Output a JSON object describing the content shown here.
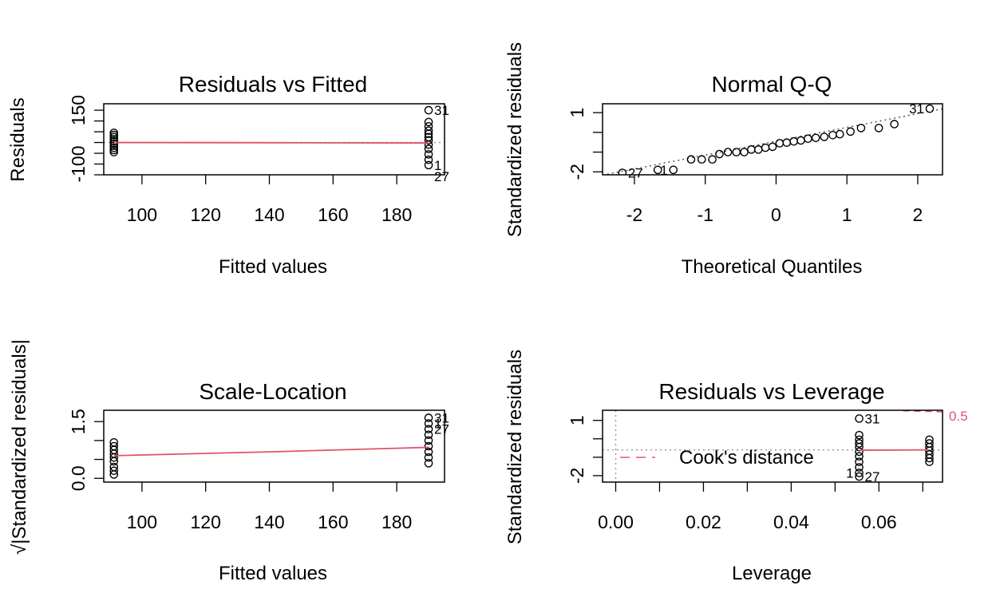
{
  "colors": {
    "smoother": "#DF536B",
    "points": "#000000",
    "refline": "#999999",
    "frame": "#000000"
  },
  "chart_data": [
    {
      "type": "scatter",
      "title": "Residuals vs Fitted",
      "xlabel": "Fitted values",
      "ylabel": "Residuals",
      "xlim": [
        88,
        195
      ],
      "ylim": [
        -150,
        180
      ],
      "xticks": [
        100,
        120,
        140,
        160,
        180
      ],
      "yticks": [
        -100,
        150
      ],
      "minor_yticks": [
        -150,
        -100,
        -50,
        0,
        50,
        100,
        150
      ],
      "points": [
        {
          "x": 91.2,
          "y": -45
        },
        {
          "x": 91.2,
          "y": -35
        },
        {
          "x": 91.2,
          "y": -25
        },
        {
          "x": 91.2,
          "y": -15
        },
        {
          "x": 91.2,
          "y": -5
        },
        {
          "x": 91.2,
          "y": 5
        },
        {
          "x": 91.2,
          "y": 15
        },
        {
          "x": 91.2,
          "y": 25
        },
        {
          "x": 91.2,
          "y": 35
        },
        {
          "x": 91.2,
          "y": 45
        },
        {
          "x": 190,
          "y": 150
        },
        {
          "x": 190,
          "y": 95
        },
        {
          "x": 190,
          "y": 75
        },
        {
          "x": 190,
          "y": 55
        },
        {
          "x": 190,
          "y": 40
        },
        {
          "x": 190,
          "y": 25
        },
        {
          "x": 190,
          "y": 10
        },
        {
          "x": 190,
          "y": -10
        },
        {
          "x": 190,
          "y": -30
        },
        {
          "x": 190,
          "y": -55
        },
        {
          "x": 190,
          "y": -80
        },
        {
          "x": 190,
          "y": -105
        }
      ],
      "smoother": [
        {
          "x": 91.2,
          "y": 0
        },
        {
          "x": 140,
          "y": -1
        },
        {
          "x": 190,
          "y": -2
        }
      ],
      "refline_y": 0,
      "point_labels": [
        {
          "text": "31",
          "x": 190,
          "y": 150,
          "side": "right"
        },
        {
          "text": "27",
          "x": 190,
          "y": -170,
          "side": "right"
        },
        {
          "text": "1",
          "x": 190,
          "y": -105,
          "side": "right"
        }
      ]
    },
    {
      "type": "scatter",
      "title": "Normal Q-Q",
      "xlabel": "Theoretical Quantiles",
      "ylabel": "Standardized residuals",
      "xlim": [
        -2.45,
        2.35
      ],
      "ylim": [
        -2.15,
        1.45
      ],
      "xticks": [
        -2,
        -1,
        0,
        1,
        2
      ],
      "yticks": [
        -2,
        1
      ],
      "minor_yticks": [
        -2,
        -1,
        0,
        1
      ],
      "points": [
        {
          "x": -2.17,
          "y": -2.05
        },
        {
          "x": -1.67,
          "y": -1.9
        },
        {
          "x": -1.45,
          "y": -1.9
        },
        {
          "x": -1.2,
          "y": -1.37
        },
        {
          "x": -1.05,
          "y": -1.37
        },
        {
          "x": -0.9,
          "y": -1.37
        },
        {
          "x": -0.8,
          "y": -1.1
        },
        {
          "x": -0.68,
          "y": -1.0
        },
        {
          "x": -0.56,
          "y": -1.0
        },
        {
          "x": -0.45,
          "y": -1.0
        },
        {
          "x": -0.35,
          "y": -0.87
        },
        {
          "x": -0.25,
          "y": -0.87
        },
        {
          "x": -0.15,
          "y": -0.78
        },
        {
          "x": -0.05,
          "y": -0.73
        },
        {
          "x": 0.05,
          "y": -0.55
        },
        {
          "x": 0.15,
          "y": -0.52
        },
        {
          "x": 0.25,
          "y": -0.46
        },
        {
          "x": 0.35,
          "y": -0.41
        },
        {
          "x": 0.45,
          "y": -0.32
        },
        {
          "x": 0.56,
          "y": -0.28
        },
        {
          "x": 0.68,
          "y": -0.23
        },
        {
          "x": 0.8,
          "y": -0.14
        },
        {
          "x": 0.9,
          "y": -0.09
        },
        {
          "x": 1.05,
          "y": 0.04
        },
        {
          "x": 1.2,
          "y": 0.22
        },
        {
          "x": 1.45,
          "y": 0.22
        },
        {
          "x": 1.67,
          "y": 0.42
        },
        {
          "x": 2.17,
          "y": 1.2
        }
      ],
      "refline": {
        "intercept": -0.45,
        "slope": 0.7
      },
      "point_labels": [
        {
          "text": "31",
          "x": 2.17,
          "y": 1.2,
          "side": "left"
        },
        {
          "text": "27",
          "x": -2.17,
          "y": -2.05,
          "side": "right"
        },
        {
          "text": "1",
          "x": -1.45,
          "y": -1.9,
          "side": "left"
        }
      ]
    },
    {
      "type": "scatter",
      "title": "Scale-Location",
      "xlabel": "Fitted values",
      "ylabel": "√|Standardized residuals|",
      "ylabel_root": "√",
      "ylabel_text": "Standardized residuals",
      "ylabel_pipe": "|",
      "xlim": [
        88,
        195
      ],
      "ylim": [
        -0.1,
        1.8
      ],
      "xticks": [
        100,
        120,
        140,
        160,
        180
      ],
      "yticks": [
        0.0,
        1.5
      ],
      "ytick_labels": [
        "0.0",
        "1.5"
      ],
      "minor_yticks": [
        0.0,
        0.5,
        1.0,
        1.5
      ],
      "points": [
        {
          "x": 91.2,
          "y": 0.1
        },
        {
          "x": 91.2,
          "y": 0.2
        },
        {
          "x": 91.2,
          "y": 0.3
        },
        {
          "x": 91.2,
          "y": 0.45
        },
        {
          "x": 91.2,
          "y": 0.55
        },
        {
          "x": 91.2,
          "y": 0.65
        },
        {
          "x": 91.2,
          "y": 0.75
        },
        {
          "x": 91.2,
          "y": 0.85
        },
        {
          "x": 91.2,
          "y": 0.95
        },
        {
          "x": 190,
          "y": 1.6
        },
        {
          "x": 190,
          "y": 1.45
        },
        {
          "x": 190,
          "y": 1.3
        },
        {
          "x": 190,
          "y": 1.15
        },
        {
          "x": 190,
          "y": 1.0
        },
        {
          "x": 190,
          "y": 0.85
        },
        {
          "x": 190,
          "y": 0.7
        },
        {
          "x": 190,
          "y": 0.55
        },
        {
          "x": 190,
          "y": 0.4
        }
      ],
      "smoother": [
        {
          "x": 91.2,
          "y": 0.6
        },
        {
          "x": 140,
          "y": 0.7
        },
        {
          "x": 190,
          "y": 0.82
        }
      ],
      "point_labels": [
        {
          "text": "31",
          "x": 190,
          "y": 1.6,
          "side": "right"
        },
        {
          "text": "27",
          "x": 190,
          "y": 1.3,
          "side": "right"
        },
        {
          "text": "1",
          "x": 190,
          "y": 1.45,
          "side": "right"
        }
      ]
    },
    {
      "type": "scatter",
      "title": "Residuals vs Leverage",
      "xlabel": "Leverage",
      "ylabel": "Standardized residuals",
      "xlim": [
        -0.003,
        0.0745
      ],
      "ylim": [
        -2.35,
        1.55
      ],
      "xticks": [
        0.0,
        0.02,
        0.04,
        0.06
      ],
      "xtick_labels": [
        "0.00",
        "0.02",
        "0.04",
        "0.06"
      ],
      "minor_xticks": [
        0.0,
        0.01,
        0.02,
        0.03,
        0.04,
        0.05,
        0.06,
        0.07
      ],
      "yticks": [
        -2,
        1
      ],
      "minor_yticks": [
        -2,
        -1,
        0,
        1
      ],
      "points": [
        {
          "x": 0.0555,
          "y": 1.1
        },
        {
          "x": 0.0555,
          "y": 0.2
        },
        {
          "x": 0.0555,
          "y": -0.05
        },
        {
          "x": 0.0555,
          "y": -0.25
        },
        {
          "x": 0.0555,
          "y": -0.45
        },
        {
          "x": 0.0555,
          "y": -0.7
        },
        {
          "x": 0.0555,
          "y": -0.95
        },
        {
          "x": 0.0555,
          "y": -1.25
        },
        {
          "x": 0.0555,
          "y": -1.55
        },
        {
          "x": 0.0555,
          "y": -1.85
        },
        {
          "x": 0.0555,
          "y": -2.05
        },
        {
          "x": 0.0715,
          "y": -0.05
        },
        {
          "x": 0.0715,
          "y": -0.25
        },
        {
          "x": 0.0715,
          "y": -0.45
        },
        {
          "x": 0.0715,
          "y": -0.65
        },
        {
          "x": 0.0715,
          "y": -0.85
        },
        {
          "x": 0.0715,
          "y": -1.05
        },
        {
          "x": 0.0715,
          "y": -1.25
        }
      ],
      "smoother": [
        {
          "x": 0.0555,
          "y": -0.62
        },
        {
          "x": 0.0715,
          "y": -0.6
        }
      ],
      "refline_y": -0.6,
      "refline_x": 0,
      "cooks_curve": [
        {
          "x": 0.0655,
          "y": 1.52
        },
        {
          "x": 0.0745,
          "y": 1.47
        }
      ],
      "cooks_label": "0.5",
      "legend": {
        "label": "Cook's distance",
        "position": "left"
      },
      "point_labels": [
        {
          "text": "31",
          "x": 0.0555,
          "y": 1.1,
          "side": "right"
        },
        {
          "text": "27",
          "x": 0.0555,
          "y": -2.05,
          "side": "right"
        },
        {
          "text": "1",
          "x": 0.0555,
          "y": -1.85,
          "side": "left"
        }
      ]
    }
  ]
}
